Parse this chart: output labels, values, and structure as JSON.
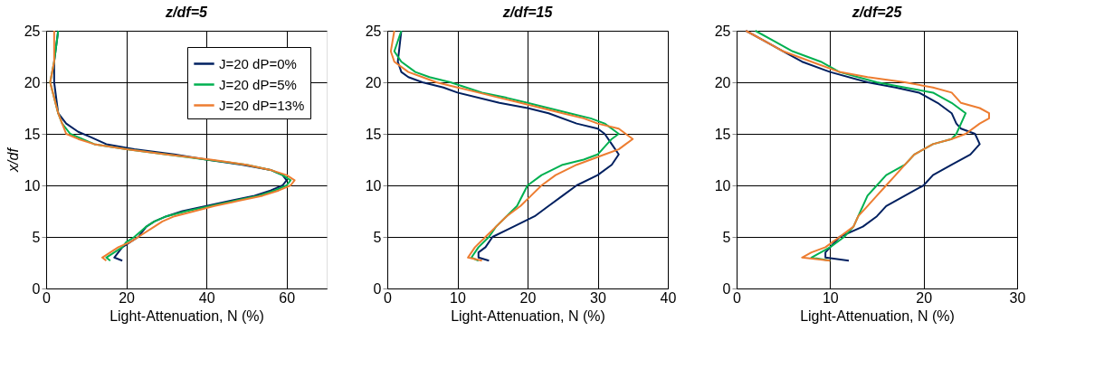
{
  "chart_data": [
    {
      "type": "line",
      "title": "z/df=5",
      "xlabel": "Light-Attenuation, N (%)",
      "ylabel": "x/df",
      "xlim": [
        0,
        70
      ],
      "xticks": [
        0,
        20,
        40,
        60
      ],
      "ylim": [
        0,
        25
      ],
      "yticks": [
        0,
        5,
        10,
        15,
        20,
        25
      ],
      "grid": true,
      "legend": "top right",
      "series": [
        {
          "name": "J=20  dP=0%",
          "color": "#002060",
          "x": [
            3,
            2,
            2,
            3,
            5,
            8,
            11,
            15,
            22,
            32,
            40,
            49,
            56,
            59,
            60,
            59,
            56,
            52,
            46,
            40,
            34,
            30,
            27,
            25,
            23,
            21,
            19,
            18,
            17,
            19
          ],
          "values": [
            25,
            22,
            20,
            17,
            16,
            15.2,
            14.7,
            14,
            13.5,
            13,
            12.5,
            12,
            11.5,
            11,
            10.5,
            10,
            9.5,
            9,
            8.5,
            8,
            7.5,
            7,
            6.5,
            6,
            5,
            4.5,
            4,
            3.5,
            3,
            2.7
          ]
        },
        {
          "name": "J=20 dP=5%",
          "color": "#00b050",
          "x": [
            3,
            2,
            1,
            3,
            4,
            6,
            9,
            12,
            20,
            30,
            40,
            50,
            56,
            59,
            61,
            60,
            57,
            53,
            47,
            41,
            35,
            30,
            27,
            25,
            22,
            20,
            19,
            17,
            15,
            16
          ],
          "values": [
            25,
            22,
            20,
            17,
            16,
            15,
            14.5,
            14,
            13.5,
            13,
            12.5,
            12,
            11.5,
            11,
            10.5,
            10,
            9.5,
            9,
            8.5,
            8,
            7.5,
            7,
            6.5,
            6,
            5,
            4.5,
            4,
            3.5,
            3,
            2.7
          ]
        },
        {
          "name": "J=20 dP=13%",
          "color": "#ed7d31",
          "x": [
            2,
            2,
            1,
            3,
            4,
            5,
            8,
            12,
            20,
            30,
            41,
            50,
            56,
            60,
            62,
            61,
            58,
            54,
            48,
            42,
            37,
            32,
            29,
            27,
            23,
            21,
            18,
            16,
            14,
            15
          ],
          "values": [
            25,
            22,
            20,
            17,
            16,
            15,
            14.5,
            14,
            13.5,
            13,
            12.5,
            12,
            11.5,
            11,
            10.5,
            10,
            9.5,
            9,
            8.5,
            8,
            7.5,
            7,
            6.5,
            6,
            5,
            4.5,
            4,
            3.5,
            3,
            2.7
          ]
        }
      ]
    },
    {
      "type": "line",
      "title": "z/df=15",
      "xlabel": "Light-Attenuation, N (%)",
      "xlim": [
        0,
        40
      ],
      "xticks": [
        0,
        10,
        20,
        30,
        40
      ],
      "ylim": [
        0,
        25
      ],
      "yticks": [
        0,
        5,
        10,
        15,
        20,
        25
      ],
      "grid": true,
      "series": [
        {
          "color": "#002060",
          "x": [
            2,
            1.5,
            2,
            3,
            5,
            8,
            10,
            16,
            20,
            23,
            27,
            30,
            31,
            32,
            33,
            32,
            30,
            27,
            25,
            23,
            21,
            18,
            15,
            14,
            13,
            13,
            14.5
          ],
          "values": [
            25,
            22,
            21,
            20.5,
            20,
            19.5,
            19,
            18,
            17.5,
            17,
            16,
            15.5,
            15,
            14,
            13,
            12,
            11,
            10,
            9,
            8,
            7,
            6,
            5,
            4,
            3.5,
            3,
            2.7
          ]
        },
        {
          "color": "#00b050",
          "x": [
            2,
            1,
            2,
            4,
            6,
            9,
            13.5,
            17,
            20,
            23,
            26,
            29,
            31,
            32,
            33,
            32,
            30,
            28,
            25,
            22,
            20,
            18.5,
            17,
            15.5,
            14.5,
            13,
            12,
            13
          ],
          "values": [
            25,
            23,
            22,
            21,
            20.5,
            20,
            19,
            18.5,
            18,
            17.5,
            17,
            16.5,
            16,
            15.5,
            15,
            14.5,
            13,
            12.5,
            12,
            11,
            10,
            8,
            7,
            6,
            5,
            4,
            3,
            2.7
          ]
        },
        {
          "color": "#ed7d31",
          "x": [
            1,
            0.5,
            1,
            3,
            5,
            7,
            10,
            13,
            16,
            19,
            22,
            25,
            28,
            30,
            33,
            34,
            35,
            34,
            33,
            31,
            29,
            27,
            24,
            22,
            20.5,
            19,
            17,
            15.5,
            14,
            12.5,
            12,
            11.5,
            13.5
          ],
          "values": [
            25,
            23,
            22,
            21,
            20.5,
            20,
            19.5,
            19,
            18.5,
            18,
            17.5,
            17,
            16.5,
            16,
            15.5,
            15,
            14.5,
            14,
            13.5,
            13,
            12.5,
            12,
            11,
            10,
            9,
            8,
            7,
            6,
            5,
            4,
            3.5,
            3,
            2.7
          ]
        }
      ]
    },
    {
      "type": "line",
      "title": "z/df=25",
      "xlabel": "Light-Attenuation, N (%)",
      "xlim": [
        0,
        30
      ],
      "xticks": [
        0,
        10,
        20,
        30
      ],
      "ylim": [
        0,
        25
      ],
      "yticks": [
        0,
        5,
        10,
        15,
        20,
        25
      ],
      "grid": true,
      "series": [
        {
          "color": "#002060",
          "x": [
            1,
            3,
            5,
            7,
            10,
            14,
            17,
            19.5,
            21.5,
            23,
            23.5,
            24,
            25.5,
            26,
            25,
            23,
            21,
            20,
            18,
            16,
            15,
            13.5,
            11,
            10,
            9.5,
            9.5,
            12
          ],
          "values": [
            25,
            24,
            23,
            22,
            21,
            20,
            19.5,
            19,
            18,
            17,
            16,
            15.5,
            15,
            14,
            13,
            12,
            11,
            10,
            9,
            8,
            7,
            6,
            5,
            4,
            3.5,
            3,
            2.7
          ]
        },
        {
          "color": "#00b050",
          "x": [
            2,
            4,
            6,
            9,
            11,
            15,
            18,
            21,
            23,
            24.5,
            24,
            23.5,
            23,
            21,
            19,
            18,
            16,
            15,
            14,
            13.5,
            13,
            12.5,
            11.5,
            10,
            8,
            10
          ],
          "values": [
            25,
            24,
            23,
            22,
            21,
            20,
            19.5,
            19,
            18,
            17,
            16,
            15,
            14.5,
            14,
            13,
            12,
            11,
            10,
            9,
            8,
            7,
            6,
            5,
            4,
            3,
            2.7
          ]
        },
        {
          "color": "#ed7d31",
          "x": [
            1,
            3,
            5,
            8,
            11,
            14,
            18,
            21,
            23,
            24,
            26,
            27,
            27,
            26,
            24.5,
            23,
            21,
            19,
            18,
            17,
            16,
            15,
            14,
            13,
            12.5,
            11,
            9.5,
            8,
            7,
            10
          ],
          "values": [
            25,
            24,
            23,
            22,
            21,
            20.5,
            20,
            19.5,
            19,
            18,
            17.5,
            17,
            16.5,
            16,
            15,
            14.5,
            14,
            13,
            12,
            11,
            10,
            9,
            8,
            7,
            6,
            5,
            4,
            3.5,
            3,
            2.7
          ]
        }
      ]
    }
  ]
}
